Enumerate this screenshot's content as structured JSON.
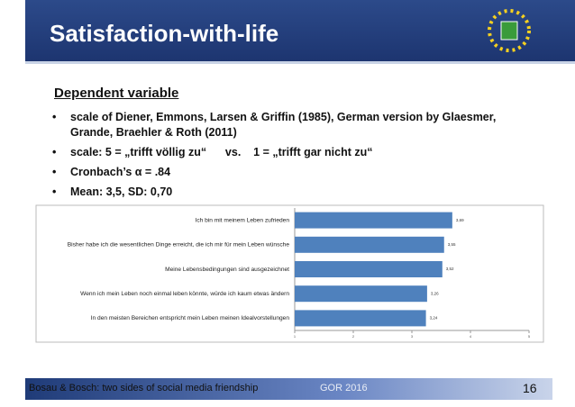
{
  "header": {
    "title": "Satisfaction-with-life"
  },
  "section": {
    "title": "Dependent variable",
    "bullets": [
      "scale of Diener, Emmons, Larsen & Griffin (1985), German version by Glaesmer, Grande, Braehler & Roth (2011)",
      "scale: 5 = „trifft völlig zu“      vs.    1 = „trifft gar nicht zu“",
      "Cronbach’s α = .84",
      "Mean: 3,5, SD: 0,70"
    ]
  },
  "chart_data": {
    "type": "hbar",
    "categories": [
      "Ich bin mit meinem Leben zufrieden",
      "Bisher habe ich die wesentlichen Dinge erreicht, die ich mir für mein Leben wünsche",
      "Meine Lebensbedingungen sind ausgezeichnet",
      "Wenn ich mein Leben noch einmal leben könnte, würde ich kaum etwas ändern",
      "In den meisten Bereichen entspricht mein Leben meinen Idealvorstellungen"
    ],
    "values": [
      3.69,
      3.55,
      3.52,
      3.26,
      3.24
    ],
    "value_labels": [
      "3,69",
      "3,55",
      "3,52",
      "3,26",
      "3,24"
    ],
    "color": "#4f81bd",
    "xlim": [
      1,
      5
    ],
    "xticks": [
      1,
      2,
      3,
      4,
      5
    ]
  },
  "footer": {
    "left": "Bosau & Bosch: two sides of social media friendship",
    "center": "GOR 2016",
    "page": "16"
  }
}
